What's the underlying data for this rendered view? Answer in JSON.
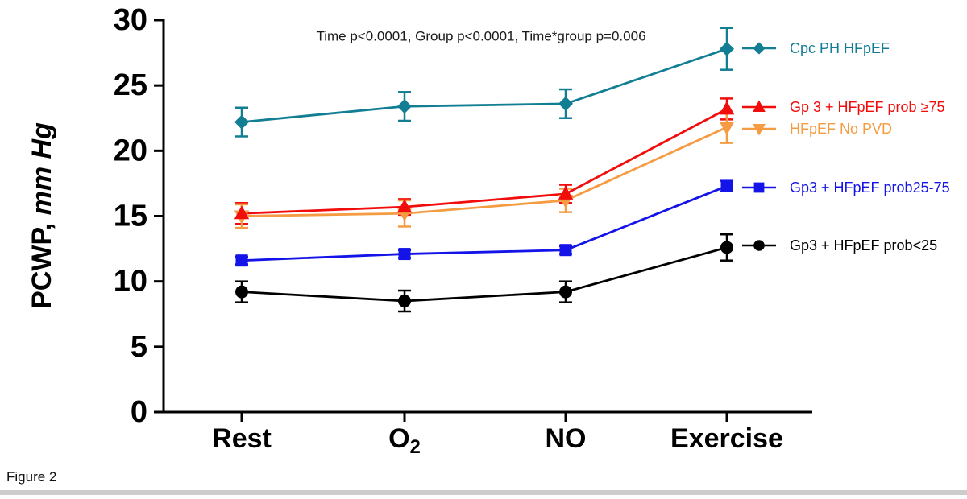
{
  "page": {
    "figure_label": "Figure 2",
    "background": "#ffffff",
    "bottom_bar_color": "#cccccc"
  },
  "chart_data": {
    "type": "line",
    "title": "",
    "annotation": "Time p<0.0001, Group p<0.0001, Time*group p=0.006",
    "ylabel_prefix": "PCWP, ",
    "ylabel_italic": "mm Hg",
    "xlabel": "",
    "categories": [
      "Rest",
      "O₂",
      "NO",
      "Exercise"
    ],
    "ylim": [
      0,
      30
    ],
    "yticks": [
      0,
      5,
      10,
      15,
      20,
      25,
      30
    ],
    "grid": false,
    "legend_position": "right",
    "axis_color": "#000000",
    "series": [
      {
        "name": "Cpc PH HFpEF",
        "color": "#127e93",
        "marker": "diamond",
        "values": [
          22.2,
          23.4,
          23.6,
          27.8
        ],
        "errors": [
          1.1,
          1.1,
          1.1,
          1.6
        ]
      },
      {
        "name": "Gp 3 + HFpEF prob ≥75",
        "color": "#f20d0d",
        "marker": "triangle-up",
        "values": [
          15.2,
          15.7,
          16.7,
          23.2
        ],
        "errors": [
          0.8,
          0.6,
          0.7,
          0.8
        ]
      },
      {
        "name": "HFpEF No PVD",
        "color": "#f59b42",
        "marker": "triangle-down",
        "values": [
          15.0,
          15.2,
          16.2,
          21.8
        ],
        "errors": [
          0.9,
          1.0,
          0.9,
          1.2
        ]
      },
      {
        "name": "Gp3 + HFpEF prob25-75",
        "color": "#1414e8",
        "marker": "square",
        "values": [
          11.6,
          12.1,
          12.4,
          17.3
        ],
        "errors": [
          0.3,
          0.3,
          0.3,
          0.4
        ]
      },
      {
        "name": "Gp3 + HFpEF prob<25",
        "color": "#000000",
        "marker": "circle",
        "values": [
          9.2,
          8.5,
          9.2,
          12.6
        ],
        "errors": [
          0.8,
          0.8,
          0.8,
          1.0
        ]
      }
    ]
  }
}
